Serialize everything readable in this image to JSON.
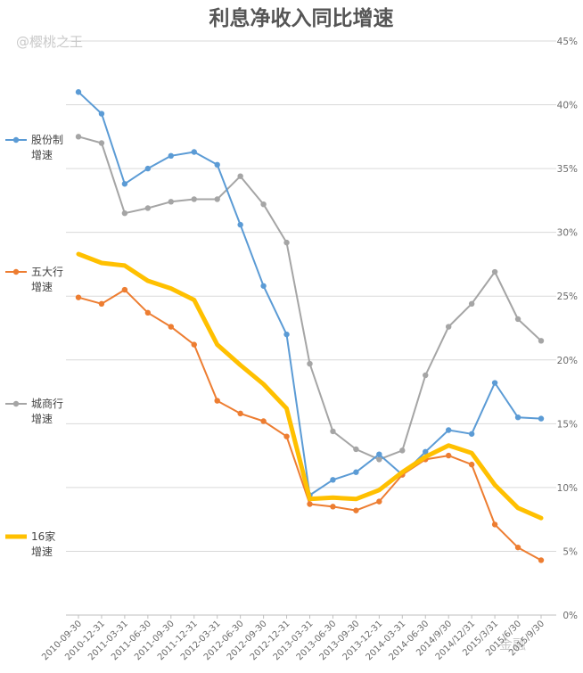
{
  "watermark": "@樱桃之王",
  "watermark_bottom": "金融",
  "chart_data": {
    "type": "line",
    "title": "利息净收入同比增速",
    "xlabel": "",
    "ylabel": "",
    "ylim": [
      0,
      45
    ],
    "yticks": [
      "0%",
      "5%",
      "10%",
      "15%",
      "20%",
      "25%",
      "30%",
      "35%",
      "40%",
      "45%"
    ],
    "grid": true,
    "legend_position": "left",
    "categories": [
      "2010-09-30",
      "2010-12-31",
      "2011-03-31",
      "2011-06-30",
      "2011-09-30",
      "2011-12-31",
      "2012-03-31",
      "2012-06-30",
      "2012-09-30",
      "2012-12-31",
      "2013-03-31",
      "2013-06-30",
      "2013-09-30",
      "2013-12-31",
      "2014-03-31",
      "2014-06-30",
      "2014/9/30",
      "2014/12/31",
      "2015/3/31",
      "2015/6/30",
      "2015/9/30"
    ],
    "series": [
      {
        "name": "股份制增速",
        "legend_lines": [
          "股份制",
          "增速"
        ],
        "color": "#5b9bd5",
        "width": 2,
        "values": [
          41.0,
          39.3,
          33.8,
          35.0,
          36.0,
          36.3,
          35.3,
          30.6,
          25.8,
          22.0,
          9.4,
          10.6,
          11.2,
          12.6,
          11.0,
          12.8,
          14.5,
          14.2,
          18.2,
          15.5,
          15.4
        ]
      },
      {
        "name": "五大行增速",
        "legend_lines": [
          "五大行",
          "增速"
        ],
        "color": "#ed7d31",
        "width": 2,
        "values": [
          24.9,
          24.4,
          25.5,
          23.7,
          22.6,
          21.2,
          16.8,
          15.8,
          15.2,
          14.0,
          8.7,
          8.5,
          8.2,
          8.9,
          11.0,
          12.2,
          12.5,
          11.8,
          7.1,
          5.3,
          4.3
        ]
      },
      {
        "name": "城商行增速",
        "legend_lines": [
          "城商行",
          "增速"
        ],
        "color": "#a5a5a5",
        "width": 2,
        "values": [
          37.5,
          37.0,
          31.5,
          31.9,
          32.4,
          32.6,
          32.6,
          34.4,
          32.2,
          29.2,
          19.7,
          14.4,
          13.0,
          12.2,
          12.9,
          18.8,
          22.6,
          24.4,
          26.9,
          23.2,
          21.5
        ]
      },
      {
        "name": "16家增速",
        "legend_lines": [
          "16家",
          "增速"
        ],
        "color": "#ffc000",
        "width": 5,
        "values": [
          28.3,
          27.6,
          27.4,
          26.2,
          25.6,
          24.7,
          21.2,
          19.6,
          18.1,
          16.2,
          9.1,
          9.2,
          9.1,
          9.8,
          11.2,
          12.4,
          13.3,
          12.7,
          10.2,
          8.4,
          7.6
        ]
      }
    ]
  }
}
